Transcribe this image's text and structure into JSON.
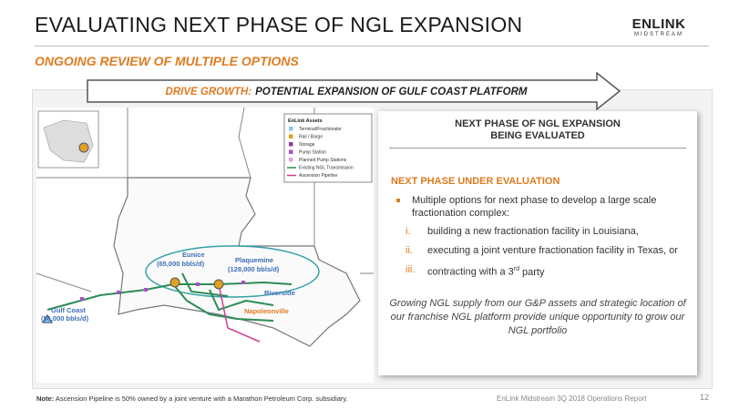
{
  "header": {
    "title": "EVALUATING NEXT PHASE OF NGL EXPANSION",
    "subtitle": "ONGOING REVIEW OF MULTIPLE OPTIONS"
  },
  "logo": {
    "name": "ENLINK",
    "tagline": "MIDSTREAM"
  },
  "banner": {
    "label": "DRIVE GROWTH:",
    "text": "POTENTIAL EXPANSION OF GULF COAST PLATFORM"
  },
  "map": {
    "legend": {
      "title": "EnLink Assets",
      "items": [
        "Terminal/Fractionator",
        "Rail / Barge",
        "Storage",
        "Pump Station",
        "Planned Pump Stations",
        "Existing NGL Transmission",
        "Ascension Pipeline"
      ]
    },
    "labels": [
      {
        "name": "Eunice",
        "capacity": "(65,000 bbls/d)"
      },
      {
        "name": "Plaquemine",
        "capacity": "(128,000 bbls/d)"
      },
      {
        "name": "Riverside"
      },
      {
        "name": "Gulf Coast",
        "capacity": "(56,000 bbls/d)"
      },
      {
        "name": "Napoleonville"
      }
    ]
  },
  "panel": {
    "header": [
      "NEXT PHASE OF NGL EXPANSION",
      "BEING EVALUATED"
    ],
    "subheading": "NEXT PHASE UNDER EVALUATION",
    "bullet": "Multiple options for next phase to develop a large scale fractionation complex:",
    "options": [
      {
        "numeral": "i.",
        "text": "building a new fractionation facility in Louisiana,"
      },
      {
        "numeral": "ii.",
        "text": "executing a joint venture fractionation facility in Texas, or"
      },
      {
        "numeral": "iii.",
        "text": "contracting with a 3",
        "sup": "rd",
        "rest": "party"
      }
    ],
    "conclusion": "Growing NGL supply from our G&P assets and strategic location of our franchise NGL platform provide unique opportunity to grow our NGL portfolio"
  },
  "footer": {
    "note_label": "Note:",
    "note": "Ascension Pipeline is 50% owned by a joint venture with a Marathon Petroleum Corp. subsidiary.",
    "report": "EnLink Midstream 3Q 2018 Operations Report",
    "page": "12"
  }
}
